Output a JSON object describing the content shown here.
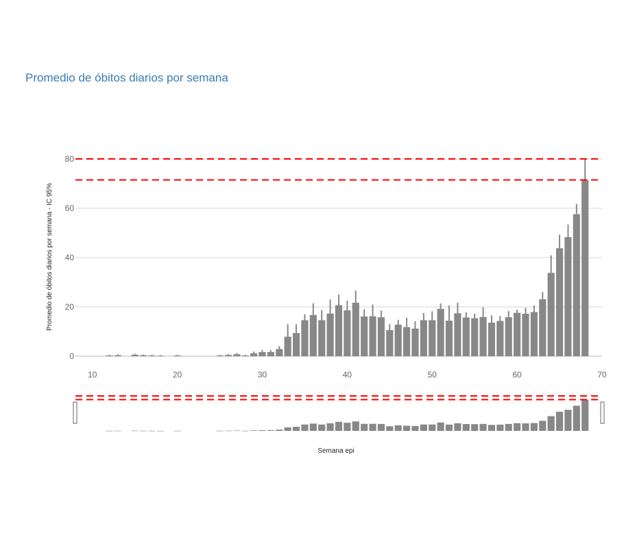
{
  "title": "Promedio de óbitos diarios por semana",
  "chart_data": {
    "type": "bar",
    "xlabel": "Semana epi",
    "ylabel": "Promedio de óbitos diarios por semana - IC 95%",
    "xlim": [
      8,
      70
    ],
    "ylim": [
      0,
      80
    ],
    "xticks": [
      10,
      20,
      30,
      40,
      50,
      60,
      70
    ],
    "yticks": [
      0,
      20,
      40,
      60,
      80
    ],
    "grid": true,
    "bar_color": "#888888",
    "error_color": "#888888",
    "reference_line_color": "#ff0000",
    "reference_lines": [
      80,
      71.5
    ],
    "x": [
      12,
      13,
      15,
      16,
      17,
      18,
      20,
      25,
      26,
      27,
      28,
      29,
      30,
      31,
      32,
      33,
      34,
      35,
      36,
      37,
      38,
      39,
      40,
      41,
      42,
      43,
      44,
      45,
      46,
      47,
      48,
      49,
      50,
      51,
      52,
      53,
      54,
      55,
      56,
      57,
      58,
      59,
      60,
      61,
      62,
      63,
      64,
      65,
      66,
      67,
      68
    ],
    "values": [
      0.3,
      0.4,
      0.6,
      0.4,
      0.3,
      0.2,
      0.3,
      0.3,
      0.5,
      0.8,
      0.3,
      1.2,
      1.7,
      1.7,
      2.9,
      7.9,
      9.4,
      14.6,
      16.7,
      14.6,
      17.3,
      20.7,
      18.6,
      21.7,
      16.1,
      16.2,
      15.8,
      10.6,
      12.8,
      11.8,
      11.2,
      14.6,
      14.6,
      19.2,
      14.4,
      17.4,
      15.7,
      15.4,
      15.9,
      13.6,
      14.3,
      15.8,
      17.6,
      17.2,
      17.9,
      23.1,
      33.8,
      43.8,
      48.3,
      57.6,
      71.5
    ],
    "error_upper": [
      0.6,
      0.8,
      1.0,
      0.7,
      0.6,
      0.5,
      0.6,
      0.6,
      0.9,
      1.3,
      0.6,
      1.9,
      2.5,
      2.5,
      4.1,
      13.0,
      13.0,
      17.0,
      21.5,
      18.7,
      23.0,
      25.0,
      22.5,
      26.6,
      19.0,
      21.0,
      18.5,
      13.0,
      14.8,
      15.6,
      14.2,
      17.5,
      18.2,
      21.4,
      20.6,
      21.7,
      17.8,
      17.2,
      19.8,
      16.6,
      16.3,
      18.3,
      18.9,
      19.6,
      20.6,
      26.0,
      40.9,
      49.3,
      53.4,
      61.7,
      80.0
    ]
  }
}
